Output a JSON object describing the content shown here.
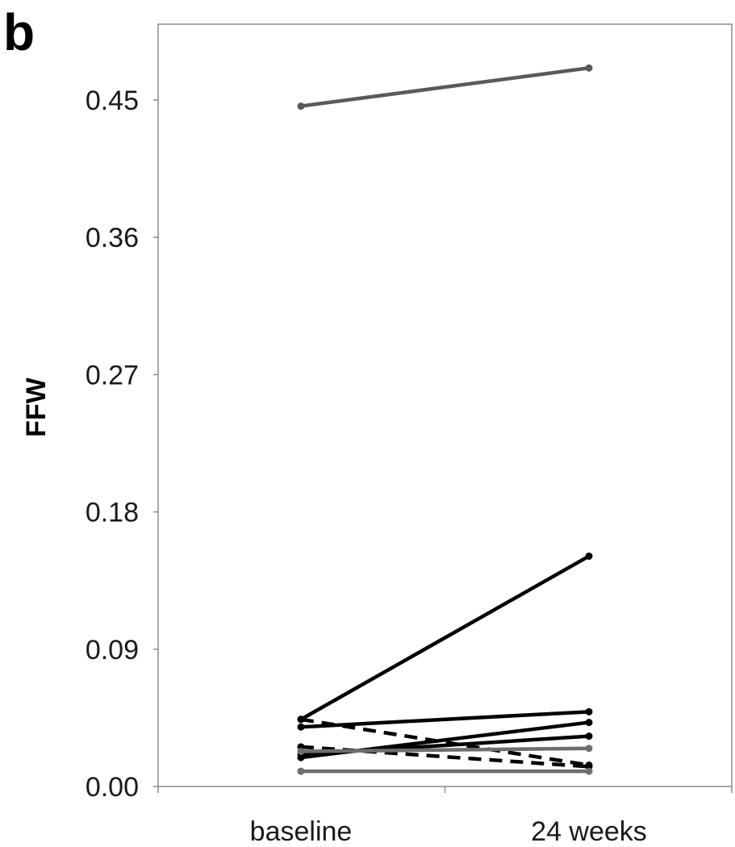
{
  "panel_label": "b",
  "chart_data": {
    "type": "line",
    "categories": [
      "baseline",
      "24 weeks"
    ],
    "ylabel": "FFW",
    "ylim": [
      0,
      0.5
    ],
    "yticks": [
      "0.00",
      "0.09",
      "0.18",
      "0.27",
      "0.36",
      "0.45"
    ],
    "ytick_values": [
      0,
      0.09,
      0.18,
      0.27,
      0.36,
      0.45
    ],
    "grid": false,
    "legend": "none",
    "series": [
      {
        "values": [
          0.446,
          0.471
        ],
        "color": "#5a5a5a",
        "dashed": false
      },
      {
        "values": [
          0.044,
          0.151
        ],
        "color": "#000000",
        "dashed": false
      },
      {
        "values": [
          0.039,
          0.049
        ],
        "color": "#000000",
        "dashed": false
      },
      {
        "values": [
          0.019,
          0.042
        ],
        "color": "#000000",
        "dashed": false
      },
      {
        "values": [
          0.021,
          0.033
        ],
        "color": "#000000",
        "dashed": false
      },
      {
        "values": [
          0.044,
          0.014
        ],
        "color": "#000000",
        "dashed": true
      },
      {
        "values": [
          0.026,
          0.013
        ],
        "color": "#000000",
        "dashed": true
      },
      {
        "values": [
          0.023,
          0.025
        ],
        "color": "#6e6e6e",
        "dashed": false
      },
      {
        "values": [
          0.01,
          0.01
        ],
        "color": "#6e6e6e",
        "dashed": false
      }
    ]
  }
}
